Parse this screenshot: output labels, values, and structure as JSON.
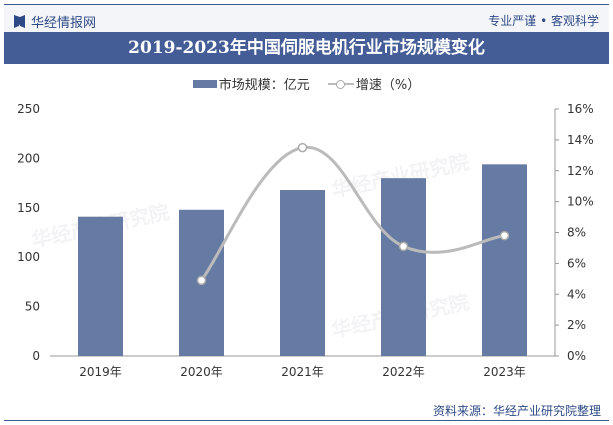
{
  "header": {
    "brand": "华经情报网",
    "slogan": "专业严谨 • 客观科学"
  },
  "footer": {
    "source": "资料来源：华经产业研究院整理",
    "watermark": "华经产业研究院"
  },
  "colors": {
    "bar": "#667ba3",
    "line": "#bbbbbb",
    "title_bg": "#445d97"
  },
  "chart_data": {
    "type": "bar+line",
    "title": "2019-2023年中国伺服电机行业市场规模变化",
    "categories": [
      "2019年",
      "2020年",
      "2021年",
      "2022年",
      "2023年"
    ],
    "series": [
      {
        "name": "市场规模：亿元",
        "type": "bar",
        "axis": "left",
        "values": [
          141,
          148,
          168,
          180,
          194
        ]
      },
      {
        "name": "增速（%）",
        "type": "line",
        "axis": "right",
        "values": [
          null,
          4.9,
          13.5,
          7.1,
          7.8
        ]
      }
    ],
    "y_left": {
      "range": [
        0,
        250
      ],
      "ticks": [
        "0",
        "50",
        "100",
        "150",
        "200",
        "250"
      ]
    },
    "y_right": {
      "range": [
        0,
        16
      ],
      "ticks": [
        "0%",
        "2%",
        "4%",
        "6%",
        "8%",
        "10%",
        "12%",
        "14%",
        "16%"
      ]
    },
    "legend": "top-center",
    "grid": false
  }
}
